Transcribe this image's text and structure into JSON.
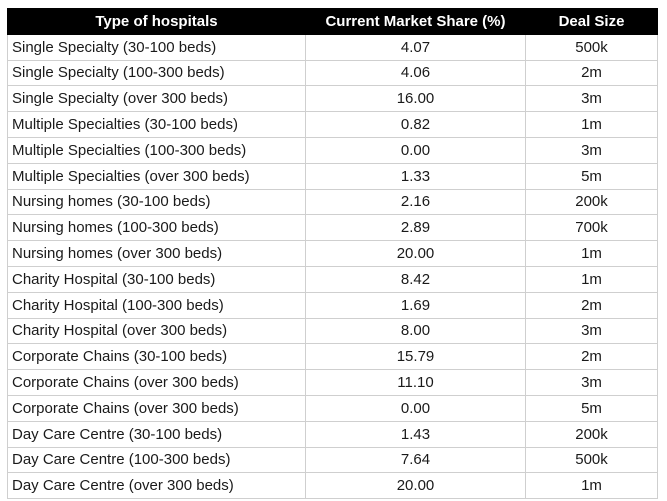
{
  "chart_data": {
    "type": "table",
    "title": "",
    "columns": [
      "Type of hospitals",
      "Current Market Share (%)",
      "Deal Size"
    ],
    "rows": [
      [
        "Single Specialty (30-100 beds)",
        "4.07",
        "500k"
      ],
      [
        "Single Specialty (100-300 beds)",
        "4.06",
        "2m"
      ],
      [
        "Single Specialty (over 300 beds)",
        "16.00",
        "3m"
      ],
      [
        "Multiple Specialties (30-100 beds)",
        "0.82",
        "1m"
      ],
      [
        "Multiple Specialties (100-300 beds)",
        "0.00",
        "3m"
      ],
      [
        "Multiple Specialties (over 300 beds)",
        "1.33",
        "5m"
      ],
      [
        "Nursing homes (30-100 beds)",
        "2.16",
        "200k"
      ],
      [
        "Nursing homes (100-300 beds)",
        "2.89",
        "700k"
      ],
      [
        "Nursing homes (over 300 beds)",
        "20.00",
        "1m"
      ],
      [
        "Charity Hospital (30-100 beds)",
        "8.42",
        "1m"
      ],
      [
        "Charity Hospital (100-300 beds)",
        "1.69",
        "2m"
      ],
      [
        "Charity Hospital (over 300 beds)",
        "8.00",
        "3m"
      ],
      [
        "Corporate Chains (30-100 beds)",
        "15.79",
        "2m"
      ],
      [
        "Corporate Chains (over 300 beds)",
        "11.10",
        "3m"
      ],
      [
        "Corporate Chains (over 300 beds)",
        "0.00",
        "5m"
      ],
      [
        "Day Care Centre (30-100 beds)",
        "1.43",
        "200k"
      ],
      [
        "Day Care Centre (100-300 beds)",
        "7.64",
        "500k"
      ],
      [
        "Day Care Centre (over 300 beds)",
        "20.00",
        "1m"
      ]
    ],
    "layout": {
      "header_style": "black background, white bold centered text",
      "grid": "light gray gridlines",
      "col1_align": "left",
      "col2_align": "center",
      "col3_align": "center"
    }
  },
  "colors": {
    "header_bg": "#000000",
    "header_text": "#ffffff",
    "body_text": "#1a1a1a",
    "border": "#cfcfcf",
    "background": "#ffffff"
  }
}
